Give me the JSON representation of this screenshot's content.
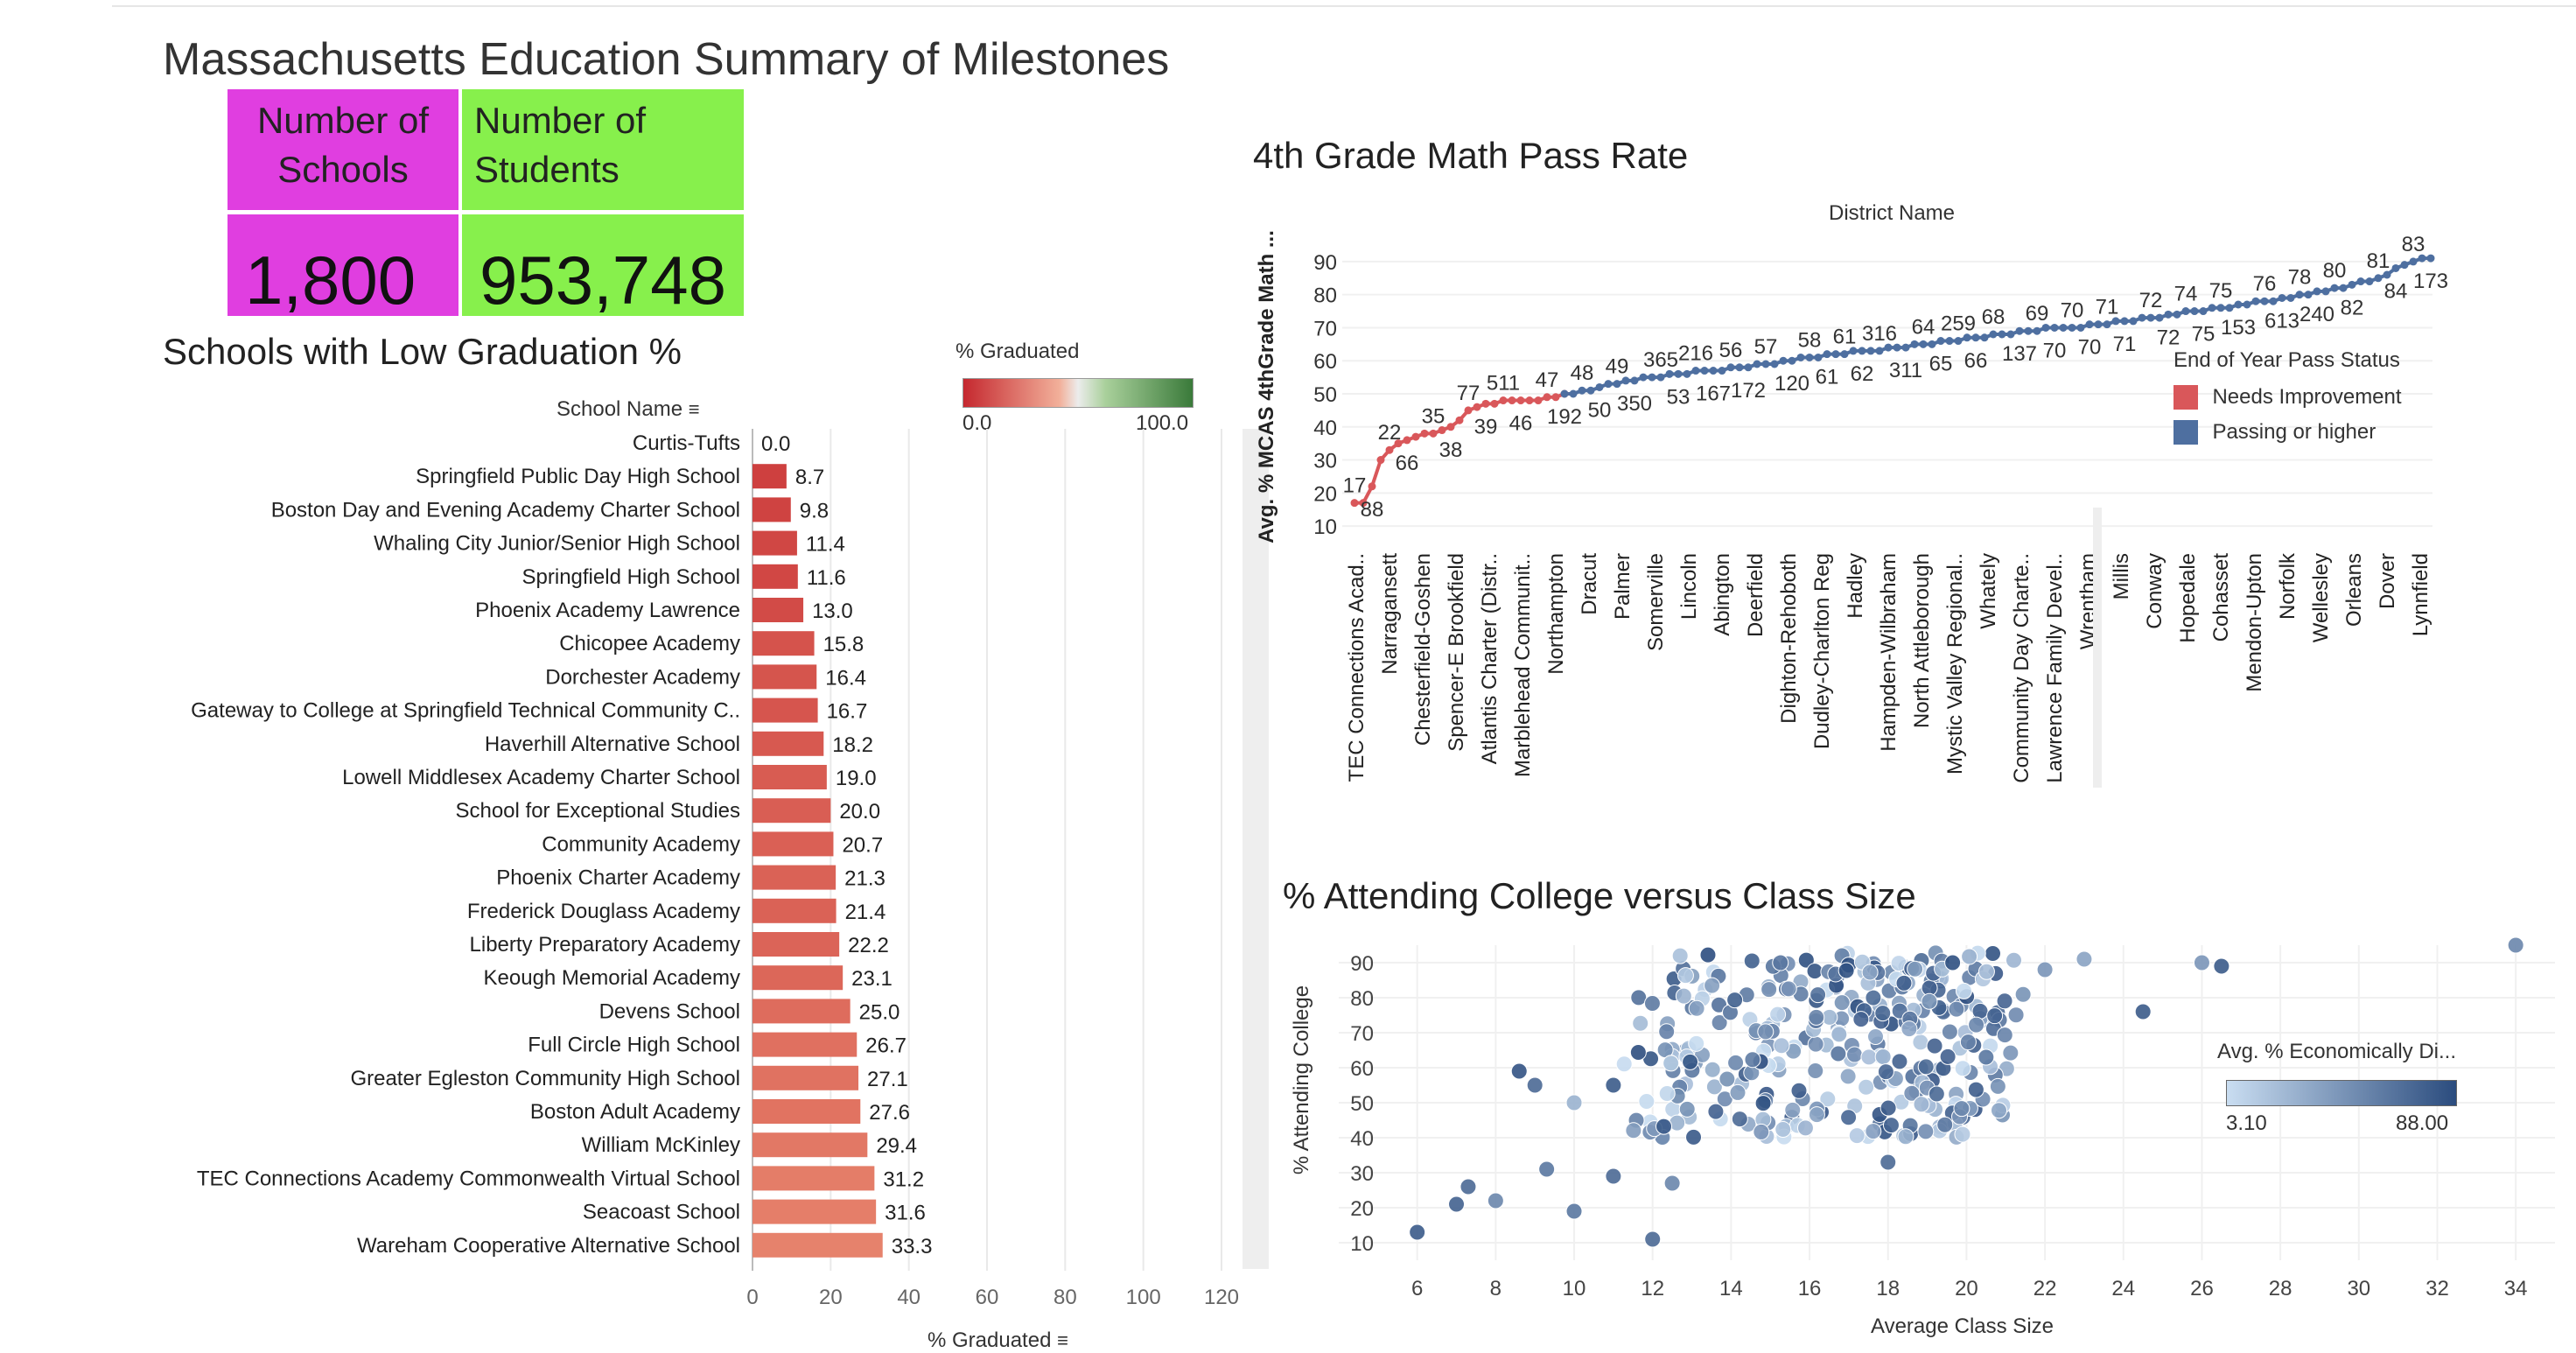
{
  "dashboard": {
    "title": "Massachusetts Education Summary of Milestones",
    "kpis": {
      "schools": {
        "label": "Number of Schools",
        "value": "1,800"
      },
      "students": {
        "label": "Number of Students",
        "value": "953,748"
      },
      "colors": {
        "schools": "#e03ee0",
        "students": "#87f04c"
      }
    }
  },
  "chart_data": [
    {
      "type": "bar",
      "title": "Schools with Low Graduation %",
      "category_header": "School Name",
      "xlabel": "% Graduated",
      "xlim": [
        0,
        120
      ],
      "xticks": [
        0,
        20,
        40,
        60,
        80,
        100,
        120
      ],
      "color_legend": {
        "title": "% Graduated",
        "min": "0.0",
        "max": "100.0",
        "low_color": "#c5282f",
        "high_color": "#3a7a3a"
      },
      "categories": [
        "Curtis-Tufts",
        "Springfield Public Day High School",
        "Boston Day and Evening Academy Charter School",
        "Whaling City Junior/Senior High School",
        "Springfield High School",
        "Phoenix Academy Lawrence",
        "Chicopee Academy",
        "Dorchester Academy",
        "Gateway to College at Springfield Technical Community C..",
        "Haverhill Alternative School",
        "Lowell Middlesex Academy Charter School",
        "School for Exceptional Studies",
        "Community Academy",
        "Phoenix Charter Academy",
        "Frederick Douglass Academy",
        "Liberty Preparatory Academy",
        "Keough Memorial Academy",
        "Devens School",
        "Full Circle High School",
        "Greater Egleston Community High School",
        "Boston Adult Academy",
        "William McKinley",
        "TEC Connections Academy Commonwealth Virtual School",
        "Seacoast School",
        "Wareham Cooperative Alternative School"
      ],
      "values": [
        0.0,
        8.7,
        9.8,
        11.4,
        11.6,
        13.0,
        15.8,
        16.4,
        16.7,
        18.2,
        19.0,
        20.0,
        20.7,
        21.3,
        21.4,
        22.2,
        23.1,
        25.0,
        26.7,
        27.1,
        27.6,
        29.4,
        31.2,
        31.6,
        33.3
      ],
      "value_labels": [
        "0.0",
        "8.7",
        "9.8",
        "11.4",
        "11.6",
        "13.0",
        "15.8",
        "16.4",
        "16.7",
        "18.2",
        "19.0",
        "20.0",
        "20.7",
        "21.3",
        "21.4",
        "22.2",
        "23.1",
        "25.0",
        "26.7",
        "27.1",
        "27.6",
        "29.4",
        "31.2",
        "31.6",
        "33.3"
      ]
    },
    {
      "type": "line",
      "title": "4th Grade Math Pass Rate",
      "xlabel": "District Name",
      "ylabel": "Avg. % MCAS 4thGrade Math ...",
      "ylim": [
        5,
        95
      ],
      "yticks": [
        10,
        20,
        30,
        40,
        50,
        60,
        70,
        80,
        90
      ],
      "legend": {
        "title": "End of Year Pass Status",
        "position": "right"
      },
      "x_labels": [
        "TEC Connections Acad..",
        "Narragansett",
        "Chesterfield-Goshen",
        "Spencer-E Brookfield",
        "Atlantis Charter (Distr..",
        "Marblehead Communit..",
        "Northampton",
        "Dracut",
        "Palmer",
        "Somerville",
        "Lincoln",
        "Abington",
        "Deerfield",
        "Dighton-Rehoboth",
        "Dudley-Charlton Reg",
        "Hadley",
        "Hampden-Wilbraham",
        "North Attleborough",
        "Mystic Valley Regional..",
        "Whately",
        "Community Day Charte..",
        "Lawrence Family Devel..",
        "Wrentham",
        "Millis",
        "Conway",
        "Hopedale",
        "Cohasset",
        "Mendon-Upton",
        "Norfolk",
        "Wellesley",
        "Orleans",
        "Dover",
        "Lynnfield"
      ],
      "series": [
        {
          "name": "Needs Improvement",
          "color": "#d9575a",
          "y": [
            17,
            17,
            22,
            30,
            33,
            35,
            36,
            37,
            38,
            38,
            39,
            40,
            42,
            45,
            46,
            47,
            47,
            48,
            48,
            48,
            48,
            48,
            49,
            49,
            50
          ]
        },
        {
          "name": "Passing or higher",
          "color": "#4e6fa0",
          "y": [
            50,
            50,
            51,
            51,
            52,
            53,
            53,
            54,
            54,
            55,
            55,
            55,
            56,
            56,
            56,
            57,
            57,
            57,
            57,
            58,
            58,
            58,
            59,
            59,
            59,
            60,
            60,
            61,
            61,
            61,
            62,
            62,
            62,
            63,
            63,
            63,
            63,
            64,
            64,
            64,
            65,
            65,
            65,
            66,
            66,
            66,
            67,
            67,
            67,
            68,
            68,
            68,
            69,
            69,
            69,
            70,
            70,
            70,
            70,
            70,
            71,
            71,
            71,
            72,
            72,
            72,
            73,
            73,
            73,
            74,
            74,
            75,
            75,
            75,
            76,
            76,
            76,
            77,
            77,
            78,
            78,
            78,
            79,
            79,
            80,
            80,
            81,
            81,
            82,
            82,
            83,
            84,
            84,
            85,
            86,
            88,
            89,
            90,
            91,
            91
          ]
        }
      ],
      "data_labels": [
        "17",
        "88",
        "22",
        "66",
        "35",
        "38",
        "77",
        "39",
        "511",
        "46",
        "47",
        "192",
        "48",
        "50",
        "49",
        "350",
        "365",
        "53",
        "216",
        "167",
        "56",
        "172",
        "57",
        "120",
        "58",
        "61",
        "61",
        "62",
        "316",
        "311",
        "64",
        "65",
        "259",
        "66",
        "68",
        "137",
        "69",
        "70",
        "70",
        "70",
        "71",
        "71",
        "72",
        "72",
        "74",
        "75",
        "75",
        "153",
        "76",
        "613",
        "78",
        "240",
        "80",
        "82",
        "81",
        "84",
        "83",
        "173"
      ]
    },
    {
      "type": "scatter",
      "title": "% Attending College versus Class Size",
      "xlabel": "Average Class Size",
      "ylabel": "% Attending College",
      "xlim": [
        4,
        35
      ],
      "ylim": [
        5,
        95
      ],
      "xticks": [
        6,
        8,
        10,
        12,
        14,
        16,
        18,
        20,
        22,
        24,
        26,
        28,
        30,
        32,
        34
      ],
      "yticks": [
        10,
        20,
        30,
        40,
        50,
        60,
        70,
        80,
        90
      ],
      "color_legend": {
        "title": "Avg. % Economically Di...",
        "min": "3.10",
        "max": "88.00",
        "low_color": "#c9ddf1",
        "high_color": "#2b4c7e"
      }
    }
  ]
}
